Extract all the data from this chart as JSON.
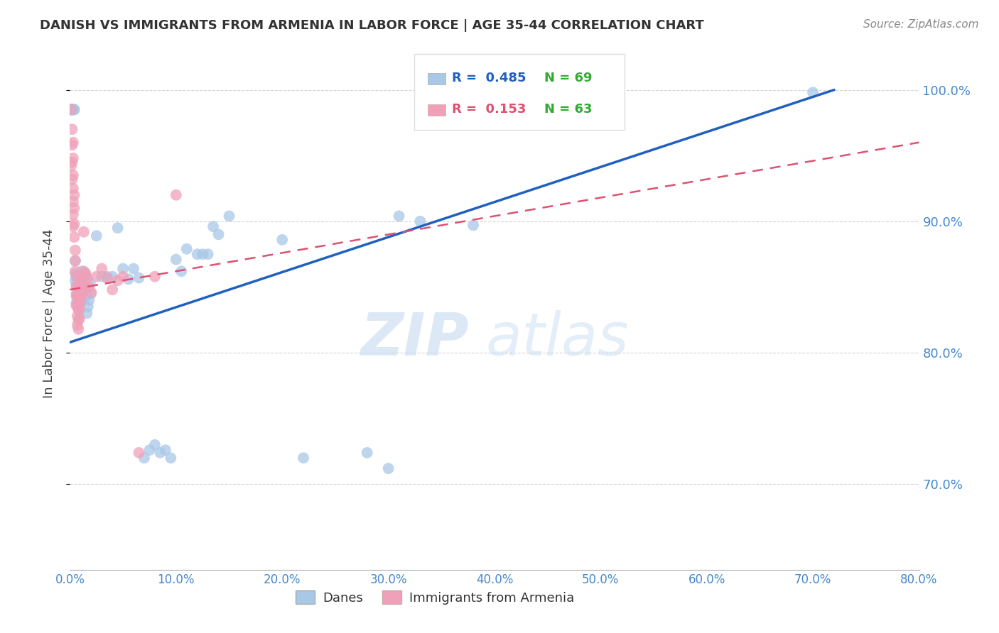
{
  "title": "DANISH VS IMMIGRANTS FROM ARMENIA IN LABOR FORCE | AGE 35-44 CORRELATION CHART",
  "source": "Source: ZipAtlas.com",
  "ylabel": "In Labor Force | Age 35-44",
  "xlim": [
    0.0,
    0.8
  ],
  "ylim": [
    0.635,
    1.025
  ],
  "xticks": [
    0.0,
    0.1,
    0.2,
    0.3,
    0.4,
    0.5,
    0.6,
    0.7,
    0.8
  ],
  "yticks": [
    0.7,
    0.8,
    0.9,
    1.0
  ],
  "legend_label_blue": "Danes",
  "legend_label_pink": "Immigrants from Armenia",
  "blue_color": "#a8c8e8",
  "pink_color": "#f0a0b8",
  "blue_line_color": "#2060c0",
  "pink_line_color": "#e05070",
  "blue_line_x": [
    0.0,
    0.72
  ],
  "blue_line_y": [
    0.808,
    1.0
  ],
  "pink_line_x": [
    0.0,
    0.8
  ],
  "pink_line_y": [
    0.848,
    0.96
  ],
  "watermark_zip": "ZIP",
  "watermark_atlas": "atlas",
  "grid_color": "#cccccc",
  "axis_tick_color": "#4488cc",
  "title_color": "#333333",
  "blue_dots": [
    [
      0.001,
      0.985
    ],
    [
      0.001,
      0.985
    ],
    [
      0.001,
      0.985
    ],
    [
      0.002,
      0.985
    ],
    [
      0.002,
      0.985
    ],
    [
      0.002,
      0.985
    ],
    [
      0.003,
      0.985
    ],
    [
      0.003,
      0.985
    ],
    [
      0.003,
      0.985
    ],
    [
      0.004,
      0.985
    ],
    [
      0.004,
      0.985
    ],
    [
      0.005,
      0.86
    ],
    [
      0.005,
      0.87
    ],
    [
      0.005,
      0.855
    ],
    [
      0.006,
      0.852
    ],
    [
      0.006,
      0.845
    ],
    [
      0.006,
      0.838
    ],
    [
      0.007,
      0.858
    ],
    [
      0.007,
      0.843
    ],
    [
      0.007,
      0.837
    ],
    [
      0.008,
      0.848
    ],
    [
      0.008,
      0.843
    ],
    [
      0.008,
      0.835
    ],
    [
      0.009,
      0.851
    ],
    [
      0.009,
      0.84
    ],
    [
      0.009,
      0.832
    ],
    [
      0.01,
      0.856
    ],
    [
      0.01,
      0.845
    ],
    [
      0.01,
      0.838
    ],
    [
      0.011,
      0.862
    ],
    [
      0.011,
      0.85
    ],
    [
      0.011,
      0.84
    ],
    [
      0.012,
      0.855
    ],
    [
      0.012,
      0.845
    ],
    [
      0.013,
      0.858
    ],
    [
      0.013,
      0.847
    ],
    [
      0.014,
      0.861
    ],
    [
      0.014,
      0.848
    ],
    [
      0.015,
      0.858
    ],
    [
      0.015,
      0.843
    ],
    [
      0.016,
      0.83
    ],
    [
      0.017,
      0.835
    ],
    [
      0.018,
      0.84
    ],
    [
      0.019,
      0.853
    ],
    [
      0.02,
      0.845
    ],
    [
      0.025,
      0.889
    ],
    [
      0.03,
      0.858
    ],
    [
      0.035,
      0.858
    ],
    [
      0.04,
      0.858
    ],
    [
      0.045,
      0.895
    ],
    [
      0.05,
      0.864
    ],
    [
      0.055,
      0.856
    ],
    [
      0.06,
      0.864
    ],
    [
      0.065,
      0.857
    ],
    [
      0.07,
      0.72
    ],
    [
      0.075,
      0.726
    ],
    [
      0.08,
      0.73
    ],
    [
      0.085,
      0.724
    ],
    [
      0.09,
      0.726
    ],
    [
      0.095,
      0.72
    ],
    [
      0.1,
      0.871
    ],
    [
      0.105,
      0.862
    ],
    [
      0.11,
      0.879
    ],
    [
      0.12,
      0.875
    ],
    [
      0.125,
      0.875
    ],
    [
      0.13,
      0.875
    ],
    [
      0.135,
      0.896
    ],
    [
      0.14,
      0.89
    ],
    [
      0.15,
      0.904
    ],
    [
      0.2,
      0.886
    ],
    [
      0.22,
      0.72
    ],
    [
      0.28,
      0.724
    ],
    [
      0.3,
      0.712
    ],
    [
      0.31,
      0.904
    ],
    [
      0.33,
      0.9
    ],
    [
      0.38,
      0.897
    ],
    [
      0.7,
      0.998
    ]
  ],
  "pink_dots": [
    [
      0.001,
      0.985
    ],
    [
      0.001,
      0.942
    ],
    [
      0.002,
      0.97
    ],
    [
      0.002,
      0.958
    ],
    [
      0.002,
      0.945
    ],
    [
      0.002,
      0.932
    ],
    [
      0.003,
      0.96
    ],
    [
      0.003,
      0.948
    ],
    [
      0.003,
      0.935
    ],
    [
      0.003,
      0.925
    ],
    [
      0.003,
      0.915
    ],
    [
      0.003,
      0.905
    ],
    [
      0.003,
      0.896
    ],
    [
      0.004,
      0.92
    ],
    [
      0.004,
      0.91
    ],
    [
      0.004,
      0.898
    ],
    [
      0.004,
      0.888
    ],
    [
      0.005,
      0.878
    ],
    [
      0.005,
      0.87
    ],
    [
      0.005,
      0.862
    ],
    [
      0.006,
      0.858
    ],
    [
      0.006,
      0.85
    ],
    [
      0.006,
      0.843
    ],
    [
      0.006,
      0.836
    ],
    [
      0.007,
      0.85
    ],
    [
      0.007,
      0.843
    ],
    [
      0.007,
      0.835
    ],
    [
      0.007,
      0.828
    ],
    [
      0.007,
      0.821
    ],
    [
      0.008,
      0.84
    ],
    [
      0.008,
      0.833
    ],
    [
      0.008,
      0.825
    ],
    [
      0.008,
      0.818
    ],
    [
      0.009,
      0.843
    ],
    [
      0.009,
      0.834
    ],
    [
      0.009,
      0.826
    ],
    [
      0.01,
      0.855
    ],
    [
      0.01,
      0.847
    ],
    [
      0.01,
      0.839
    ],
    [
      0.011,
      0.85
    ],
    [
      0.011,
      0.843
    ],
    [
      0.012,
      0.857
    ],
    [
      0.013,
      0.892
    ],
    [
      0.013,
      0.862
    ],
    [
      0.015,
      0.86
    ],
    [
      0.015,
      0.85
    ],
    [
      0.016,
      0.856
    ],
    [
      0.018,
      0.85
    ],
    [
      0.02,
      0.846
    ],
    [
      0.025,
      0.858
    ],
    [
      0.03,
      0.864
    ],
    [
      0.035,
      0.857
    ],
    [
      0.04,
      0.848
    ],
    [
      0.045,
      0.855
    ],
    [
      0.05,
      0.858
    ],
    [
      0.065,
      0.724
    ],
    [
      0.08,
      0.858
    ],
    [
      0.1,
      0.92
    ]
  ]
}
